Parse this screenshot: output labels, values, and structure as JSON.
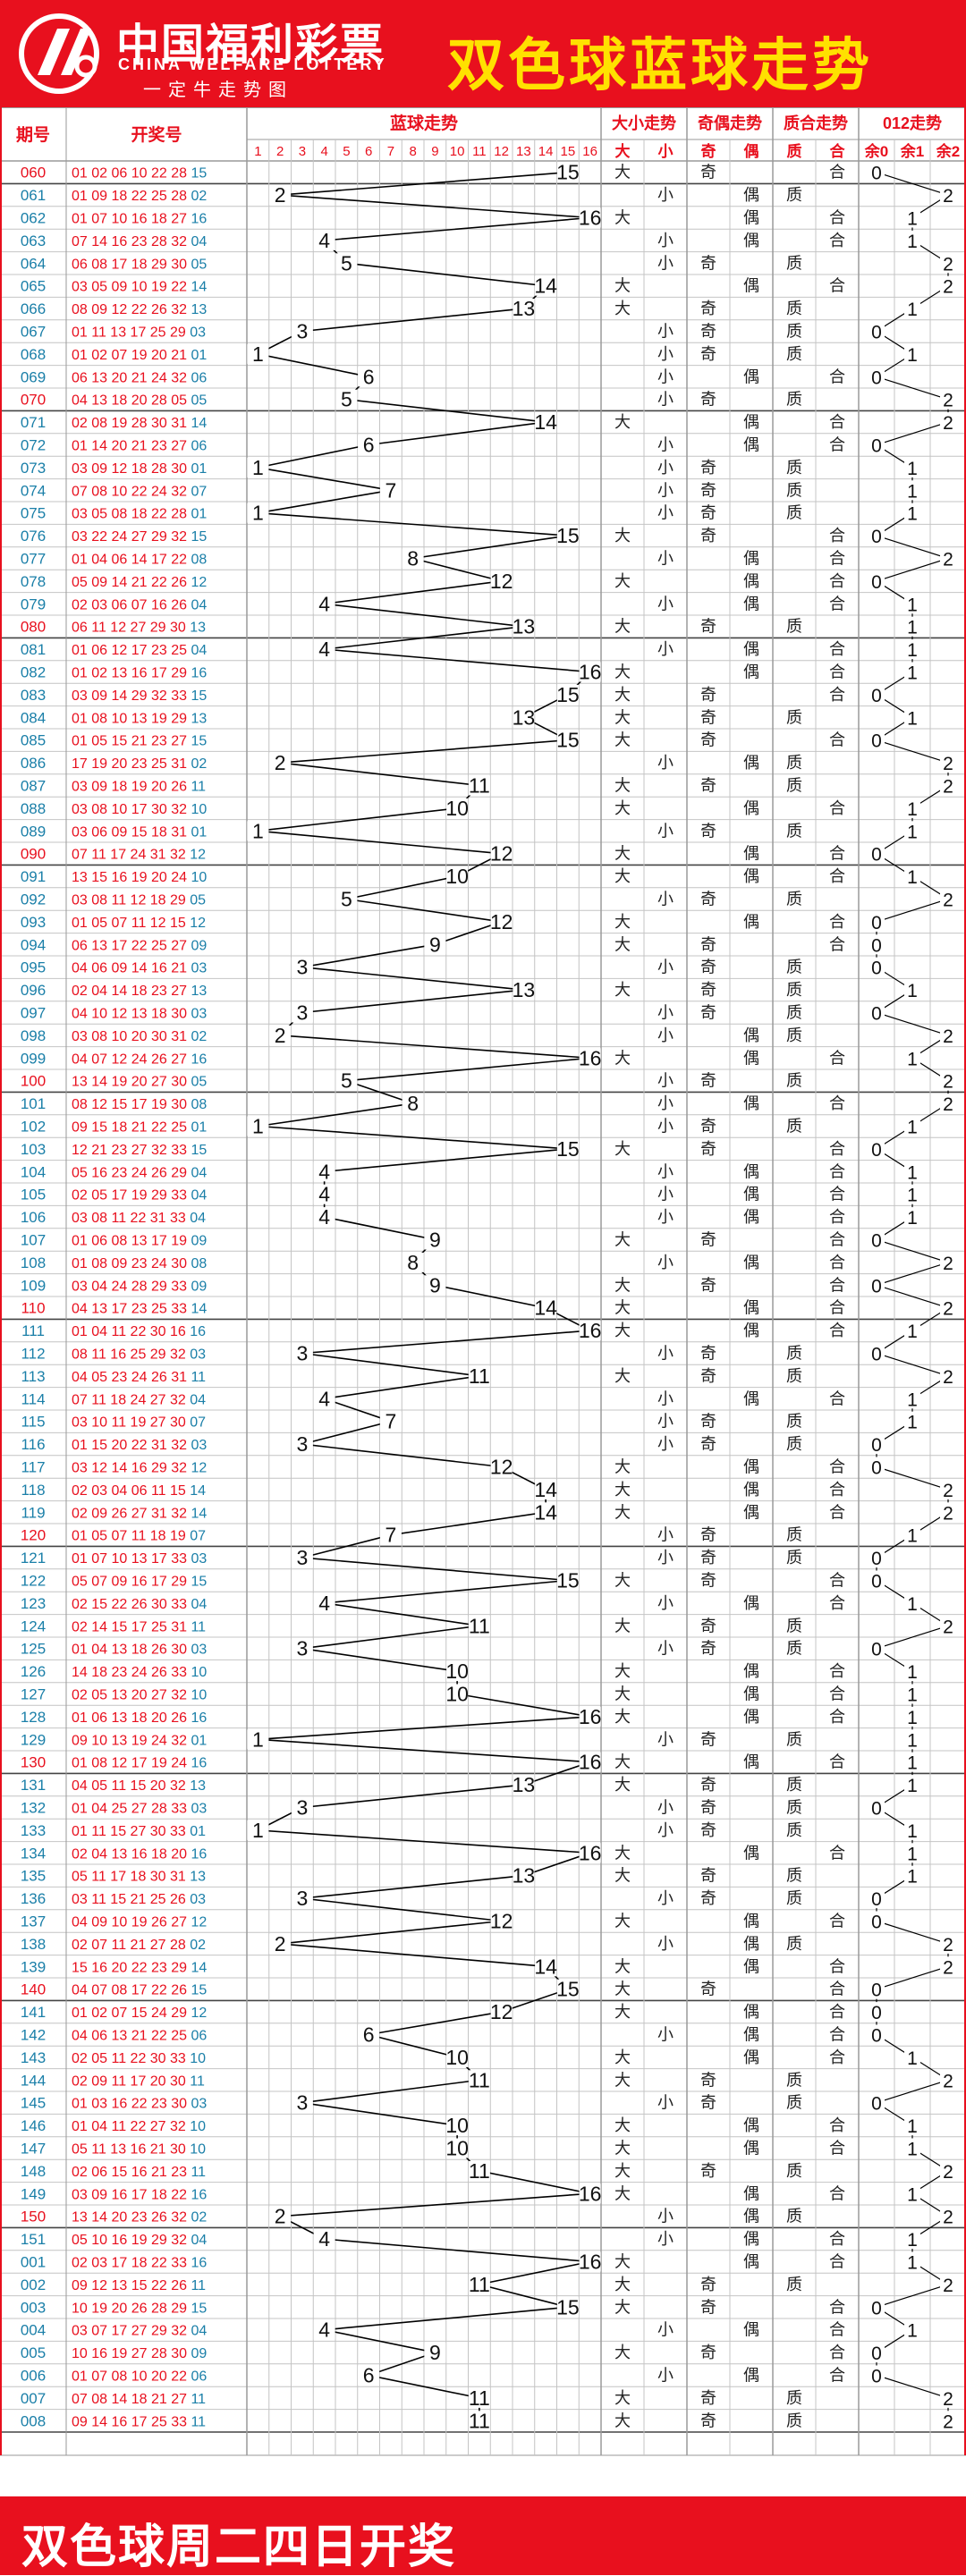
{
  "header": {
    "brand_cn": "中国福利彩票",
    "brand_en": "CHINA WELFARE LOTTERY",
    "brand_sub": "一定牛走势图",
    "title": "双色球蓝球走势"
  },
  "footer": {
    "text": "双色球周二四日开奖"
  },
  "colors": {
    "red": "#e8101e",
    "blue": "#1a7fa8",
    "title_yellow": "#ffe100",
    "grid": "#9a9a9a",
    "line": "#000000"
  },
  "chart_data": {
    "type": "table",
    "columns": {
      "period": "期号",
      "numbers": "开奖号",
      "blue": "蓝球走势",
      "size": "大小走势",
      "parity": "奇偶走势",
      "prime": "质合走势",
      "mod3": "012走势"
    },
    "blue_ticks": [
      "1",
      "2",
      "3",
      "4",
      "5",
      "6",
      "7",
      "8",
      "9",
      "10",
      "11",
      "12",
      "13",
      "14",
      "15",
      "16"
    ],
    "size_ticks": [
      "大",
      "小"
    ],
    "parity_ticks": [
      "奇",
      "偶"
    ],
    "prime_ticks": [
      "质",
      "合"
    ],
    "mod3_ticks": [
      "余0",
      "余1",
      "余2"
    ],
    "draws": [
      {
        "p": "060",
        "n": "01 02 06 10 22 28",
        "b": 15,
        "s": "大",
        "o": "奇",
        "q": "合",
        "m": "0"
      },
      {
        "p": "061",
        "n": "01 09 18 22 25 28",
        "b": 2,
        "s": "小",
        "o": "偶",
        "q": "质",
        "m": "2"
      },
      {
        "p": "062",
        "n": "01 07 10 16 18 27",
        "b": 16,
        "s": "大",
        "o": "偶",
        "q": "合",
        "m": "1"
      },
      {
        "p": "063",
        "n": "07 14 16 23 28 32",
        "b": 4,
        "s": "小",
        "o": "偶",
        "q": "合",
        "m": "1"
      },
      {
        "p": "064",
        "n": "06 08 17 18 29 30",
        "b": 5,
        "s": "小",
        "o": "奇",
        "q": "质",
        "m": "2"
      },
      {
        "p": "065",
        "n": "03 05 09 10 19 22",
        "b": 14,
        "s": "大",
        "o": "偶",
        "q": "合",
        "m": "2"
      },
      {
        "p": "066",
        "n": "08 09 12 22 26 32",
        "b": 13,
        "s": "大",
        "o": "奇",
        "q": "质",
        "m": "1"
      },
      {
        "p": "067",
        "n": "01 11 13 17 25 29",
        "b": 3,
        "s": "小",
        "o": "奇",
        "q": "质",
        "m": "0"
      },
      {
        "p": "068",
        "n": "01 02 07 19 20 21",
        "b": 1,
        "s": "小",
        "o": "奇",
        "q": "质",
        "m": "1"
      },
      {
        "p": "069",
        "n": "06 13 20 21 24 32",
        "b": 6,
        "s": "小",
        "o": "偶",
        "q": "合",
        "m": "0"
      },
      {
        "p": "070",
        "n": "04 13 18 20 28 05",
        "b": 5,
        "s": "小",
        "o": "奇",
        "q": "质",
        "m": "2"
      },
      {
        "p": "071",
        "n": "02 08 19 28 30 31",
        "b": 14,
        "s": "大",
        "o": "偶",
        "q": "合",
        "m": "2"
      },
      {
        "p": "072",
        "n": "01 14 20 21 23 27",
        "b": 6,
        "s": "小",
        "o": "偶",
        "q": "合",
        "m": "0"
      },
      {
        "p": "073",
        "n": "03 09 12 18 28 30",
        "b": 1,
        "s": "小",
        "o": "奇",
        "q": "质",
        "m": "1"
      },
      {
        "p": "074",
        "n": "07 08 10 22 24 32",
        "b": 7,
        "s": "小",
        "o": "奇",
        "q": "质",
        "m": "1"
      },
      {
        "p": "075",
        "n": "03 05 08 18 22 28",
        "b": 1,
        "s": "小",
        "o": "奇",
        "q": "质",
        "m": "1"
      },
      {
        "p": "076",
        "n": "03 22 24 27 29 32",
        "b": 15,
        "s": "大",
        "o": "奇",
        "q": "合",
        "m": "0"
      },
      {
        "p": "077",
        "n": "01 04 06 14 17 22",
        "b": 8,
        "s": "小",
        "o": "偶",
        "q": "合",
        "m": "2"
      },
      {
        "p": "078",
        "n": "05 09 14 21 22 26",
        "b": 12,
        "s": "大",
        "o": "偶",
        "q": "合",
        "m": "0"
      },
      {
        "p": "079",
        "n": "02 03 06 07 16 26",
        "b": 4,
        "s": "小",
        "o": "偶",
        "q": "合",
        "m": "1"
      },
      {
        "p": "080",
        "n": "06 11 12 27 29 30",
        "b": 13,
        "s": "大",
        "o": "奇",
        "q": "质",
        "m": "1"
      },
      {
        "p": "081",
        "n": "01 06 12 17 23 25",
        "b": 4,
        "s": "小",
        "o": "偶",
        "q": "合",
        "m": "1"
      },
      {
        "p": "082",
        "n": "01 02 13 16 17 29",
        "b": 16,
        "s": "大",
        "o": "偶",
        "q": "合",
        "m": "1"
      },
      {
        "p": "083",
        "n": "03 09 14 29 32 33",
        "b": 15,
        "s": "大",
        "o": "奇",
        "q": "合",
        "m": "0"
      },
      {
        "p": "084",
        "n": "01 08 10 13 19 29",
        "b": 13,
        "s": "大",
        "o": "奇",
        "q": "质",
        "m": "1"
      },
      {
        "p": "085",
        "n": "01 05 15 21 23 27",
        "b": 15,
        "s": "大",
        "o": "奇",
        "q": "合",
        "m": "0"
      },
      {
        "p": "086",
        "n": "17 19 20 23 25 31",
        "b": 2,
        "s": "小",
        "o": "偶",
        "q": "质",
        "m": "2"
      },
      {
        "p": "087",
        "n": "03 09 18 19 20 26",
        "b": 11,
        "s": "大",
        "o": "奇",
        "q": "质",
        "m": "2"
      },
      {
        "p": "088",
        "n": "03 08 10 17 30 32",
        "b": 10,
        "s": "大",
        "o": "偶",
        "q": "合",
        "m": "1"
      },
      {
        "p": "089",
        "n": "03 06 09 15 18 31",
        "b": 1,
        "s": "小",
        "o": "奇",
        "q": "质",
        "m": "1"
      },
      {
        "p": "090",
        "n": "07 11 17 24 31 32",
        "b": 12,
        "s": "大",
        "o": "偶",
        "q": "合",
        "m": "0"
      },
      {
        "p": "091",
        "n": "13 15 16 19 20 24",
        "b": 10,
        "s": "大",
        "o": "偶",
        "q": "合",
        "m": "1"
      },
      {
        "p": "092",
        "n": "03 08 11 12 18 29",
        "b": 5,
        "s": "小",
        "o": "奇",
        "q": "质",
        "m": "2"
      },
      {
        "p": "093",
        "n": "01 05 07 11 12 15",
        "b": 12,
        "s": "大",
        "o": "偶",
        "q": "合",
        "m": "0"
      },
      {
        "p": "094",
        "n": "06 13 17 22 25 27",
        "b": 9,
        "s": "大",
        "o": "奇",
        "q": "合",
        "m": "0"
      },
      {
        "p": "095",
        "n": "04 06 09 14 16 21",
        "b": 3,
        "s": "小",
        "o": "奇",
        "q": "质",
        "m": "0"
      },
      {
        "p": "096",
        "n": "02 04 14 18 23 27",
        "b": 13,
        "s": "大",
        "o": "奇",
        "q": "质",
        "m": "1"
      },
      {
        "p": "097",
        "n": "04 10 12 13 18 30",
        "b": 3,
        "s": "小",
        "o": "奇",
        "q": "质",
        "m": "0"
      },
      {
        "p": "098",
        "n": "03 08 10 20 30 31",
        "b": 2,
        "s": "小",
        "o": "偶",
        "q": "质",
        "m": "2"
      },
      {
        "p": "099",
        "n": "04 07 12 24 26 27",
        "b": 16,
        "s": "大",
        "o": "偶",
        "q": "合",
        "m": "1"
      },
      {
        "p": "100",
        "n": "13 14 19 20 27 30",
        "b": 5,
        "s": "小",
        "o": "奇",
        "q": "质",
        "m": "2"
      },
      {
        "p": "101",
        "n": "08 12 15 17 19 30",
        "b": 8,
        "s": "小",
        "o": "偶",
        "q": "合",
        "m": "2"
      },
      {
        "p": "102",
        "n": "09 15 18 21 22 25",
        "b": 1,
        "s": "小",
        "o": "奇",
        "q": "质",
        "m": "1"
      },
      {
        "p": "103",
        "n": "12 21 23 27 32 33",
        "b": 15,
        "s": "大",
        "o": "奇",
        "q": "合",
        "m": "0"
      },
      {
        "p": "104",
        "n": "05 16 23 24 26 29",
        "b": 4,
        "s": "小",
        "o": "偶",
        "q": "合",
        "m": "1"
      },
      {
        "p": "105",
        "n": "02 05 17 19 29 33",
        "b": 4,
        "s": "小",
        "o": "偶",
        "q": "合",
        "m": "1"
      },
      {
        "p": "106",
        "n": "03 08 11 22 31 33",
        "b": 4,
        "s": "小",
        "o": "偶",
        "q": "合",
        "m": "1"
      },
      {
        "p": "107",
        "n": "01 06 08 13 17 19",
        "b": 9,
        "s": "大",
        "o": "奇",
        "q": "合",
        "m": "0"
      },
      {
        "p": "108",
        "n": "01 08 09 23 24 30",
        "b": 8,
        "s": "小",
        "o": "偶",
        "q": "合",
        "m": "2"
      },
      {
        "p": "109",
        "n": "03 04 24 28 29 33",
        "b": 9,
        "s": "大",
        "o": "奇",
        "q": "合",
        "m": "0"
      },
      {
        "p": "110",
        "n": "04 13 17 23 25 33",
        "b": 14,
        "s": "大",
        "o": "偶",
        "q": "合",
        "m": "2"
      },
      {
        "p": "111",
        "n": "01 04 11 22 30 16",
        "b": 16,
        "s": "大",
        "o": "偶",
        "q": "合",
        "m": "1"
      },
      {
        "p": "112",
        "n": "08 11 16 25 29 32",
        "b": 3,
        "s": "小",
        "o": "奇",
        "q": "质",
        "m": "0"
      },
      {
        "p": "113",
        "n": "04 05 23 24 26 31",
        "b": 11,
        "s": "大",
        "o": "奇",
        "q": "质",
        "m": "2"
      },
      {
        "p": "114",
        "n": "07 11 18 24 27 32",
        "b": 4,
        "s": "小",
        "o": "偶",
        "q": "合",
        "m": "1"
      },
      {
        "p": "115",
        "n": "03 10 11 19 27 30",
        "b": 7,
        "s": "小",
        "o": "奇",
        "q": "质",
        "m": "1"
      },
      {
        "p": "116",
        "n": "01 15 20 22 31 32",
        "b": 3,
        "s": "小",
        "o": "奇",
        "q": "质",
        "m": "0"
      },
      {
        "p": "117",
        "n": "03 12 14 16 29 32",
        "b": 12,
        "s": "大",
        "o": "偶",
        "q": "合",
        "m": "0"
      },
      {
        "p": "118",
        "n": "02 03 04 06 11 15",
        "b": 14,
        "s": "大",
        "o": "偶",
        "q": "合",
        "m": "2"
      },
      {
        "p": "119",
        "n": "02 09 26 27 31 32",
        "b": 14,
        "s": "大",
        "o": "偶",
        "q": "合",
        "m": "2"
      },
      {
        "p": "120",
        "n": "01 05 07 11 18 19",
        "b": 7,
        "s": "小",
        "o": "奇",
        "q": "质",
        "m": "1"
      },
      {
        "p": "121",
        "n": "01 07 10 13 17 33",
        "b": 3,
        "s": "小",
        "o": "奇",
        "q": "质",
        "m": "0"
      },
      {
        "p": "122",
        "n": "05 07 09 16 17 29",
        "b": 15,
        "s": "大",
        "o": "奇",
        "q": "合",
        "m": "0"
      },
      {
        "p": "123",
        "n": "02 15 22 26 30 33",
        "b": 4,
        "s": "小",
        "o": "偶",
        "q": "合",
        "m": "1"
      },
      {
        "p": "124",
        "n": "02 14 15 17 25 31",
        "b": 11,
        "s": "大",
        "o": "奇",
        "q": "质",
        "m": "2"
      },
      {
        "p": "125",
        "n": "01 04 13 18 26 30",
        "b": 3,
        "s": "小",
        "o": "奇",
        "q": "质",
        "m": "0"
      },
      {
        "p": "126",
        "n": "14 18 23 24 26 33",
        "b": 10,
        "s": "大",
        "o": "偶",
        "q": "合",
        "m": "1"
      },
      {
        "p": "127",
        "n": "02 05 13 20 27 32",
        "b": 10,
        "s": "大",
        "o": "偶",
        "q": "合",
        "m": "1"
      },
      {
        "p": "128",
        "n": "01 06 13 18 20 26",
        "b": 16,
        "s": "大",
        "o": "偶",
        "q": "合",
        "m": "1"
      },
      {
        "p": "129",
        "n": "09 10 13 19 24 32",
        "b": 1,
        "s": "小",
        "o": "奇",
        "q": "质",
        "m": "1"
      },
      {
        "p": "130",
        "n": "01 08 12 17 19 24",
        "b": 16,
        "s": "大",
        "o": "偶",
        "q": "合",
        "m": "1"
      },
      {
        "p": "131",
        "n": "04 05 11 15 20 32",
        "b": 13,
        "s": "大",
        "o": "奇",
        "q": "质",
        "m": "1"
      },
      {
        "p": "132",
        "n": "01 04 25 27 28 33",
        "b": 3,
        "s": "小",
        "o": "奇",
        "q": "质",
        "m": "0"
      },
      {
        "p": "133",
        "n": "01 11 15 27 30 33",
        "b": 1,
        "s": "小",
        "o": "奇",
        "q": "质",
        "m": "1"
      },
      {
        "p": "134",
        "n": "02 04 13 16 18 20",
        "b": 16,
        "s": "大",
        "o": "偶",
        "q": "合",
        "m": "1"
      },
      {
        "p": "135",
        "n": "05 11 17 18 30 31",
        "b": 13,
        "s": "大",
        "o": "奇",
        "q": "质",
        "m": "1"
      },
      {
        "p": "136",
        "n": "03 11 15 21 25 26",
        "b": 3,
        "s": "小",
        "o": "奇",
        "q": "质",
        "m": "0"
      },
      {
        "p": "137",
        "n": "04 09 10 19 26 27",
        "b": 12,
        "s": "大",
        "o": "偶",
        "q": "合",
        "m": "0"
      },
      {
        "p": "138",
        "n": "02 07 11 21 27 28",
        "b": 2,
        "s": "小",
        "o": "偶",
        "q": "质",
        "m": "2"
      },
      {
        "p": "139",
        "n": "15 16 20 22 23 29",
        "b": 14,
        "s": "大",
        "o": "偶",
        "q": "合",
        "m": "2"
      },
      {
        "p": "140",
        "n": "04 07 08 17 22 26",
        "b": 15,
        "s": "大",
        "o": "奇",
        "q": "合",
        "m": "0"
      },
      {
        "p": "141",
        "n": "01 02 07 15 24 29",
        "b": 12,
        "s": "大",
        "o": "偶",
        "q": "合",
        "m": "0"
      },
      {
        "p": "142",
        "n": "04 06 13 21 22 25",
        "b": 6,
        "s": "小",
        "o": "偶",
        "q": "合",
        "m": "0"
      },
      {
        "p": "143",
        "n": "02 05 11 22 30 33",
        "b": 10,
        "s": "大",
        "o": "偶",
        "q": "合",
        "m": "1"
      },
      {
        "p": "144",
        "n": "02 09 11 17 20 30",
        "b": 11,
        "s": "大",
        "o": "奇",
        "q": "质",
        "m": "2"
      },
      {
        "p": "145",
        "n": "01 03 16 22 23 30",
        "b": 3,
        "s": "小",
        "o": "奇",
        "q": "质",
        "m": "0"
      },
      {
        "p": "146",
        "n": "01 04 11 22 27 32",
        "b": 10,
        "s": "大",
        "o": "偶",
        "q": "合",
        "m": "1"
      },
      {
        "p": "147",
        "n": "05 11 13 16 21 30",
        "b": 10,
        "s": "大",
        "o": "偶",
        "q": "合",
        "m": "1"
      },
      {
        "p": "148",
        "n": "02 06 15 16 21 23",
        "b": 11,
        "s": "大",
        "o": "奇",
        "q": "质",
        "m": "2"
      },
      {
        "p": "149",
        "n": "03 09 16 17 18 22",
        "b": 16,
        "s": "大",
        "o": "偶",
        "q": "合",
        "m": "1"
      },
      {
        "p": "150",
        "n": "13 14 20 23 26 32",
        "b": 2,
        "s": "小",
        "o": "偶",
        "q": "质",
        "m": "2"
      },
      {
        "p": "151",
        "n": "05 10 16 19 29 32",
        "b": 4,
        "s": "小",
        "o": "偶",
        "q": "合",
        "m": "1"
      },
      {
        "p": "001",
        "n": "02 03 17 18 22 33",
        "b": 16,
        "s": "大",
        "o": "偶",
        "q": "合",
        "m": "1"
      },
      {
        "p": "002",
        "n": "09 12 13 15 22 26",
        "b": 11,
        "s": "大",
        "o": "奇",
        "q": "质",
        "m": "2"
      },
      {
        "p": "003",
        "n": "10 19 20 26 28 29",
        "b": 15,
        "s": "大",
        "o": "奇",
        "q": "合",
        "m": "0"
      },
      {
        "p": "004",
        "n": "03 07 17 27 29 32",
        "b": 4,
        "s": "小",
        "o": "偶",
        "q": "合",
        "m": "1"
      },
      {
        "p": "005",
        "n": "10 16 19 27 28 30",
        "b": 9,
        "s": "大",
        "o": "奇",
        "q": "合",
        "m": "0"
      },
      {
        "p": "006",
        "n": "01 07 08 10 20 22",
        "b": 6,
        "s": "小",
        "o": "偶",
        "q": "合",
        "m": "0"
      },
      {
        "p": "007",
        "n": "07 08 14 18 21 27",
        "b": 11,
        "s": "大",
        "o": "奇",
        "q": "质",
        "m": "2"
      },
      {
        "p": "008",
        "n": "09 14 16 17 25 33",
        "b": 11,
        "s": "大",
        "o": "奇",
        "q": "质",
        "m": "2"
      }
    ]
  }
}
